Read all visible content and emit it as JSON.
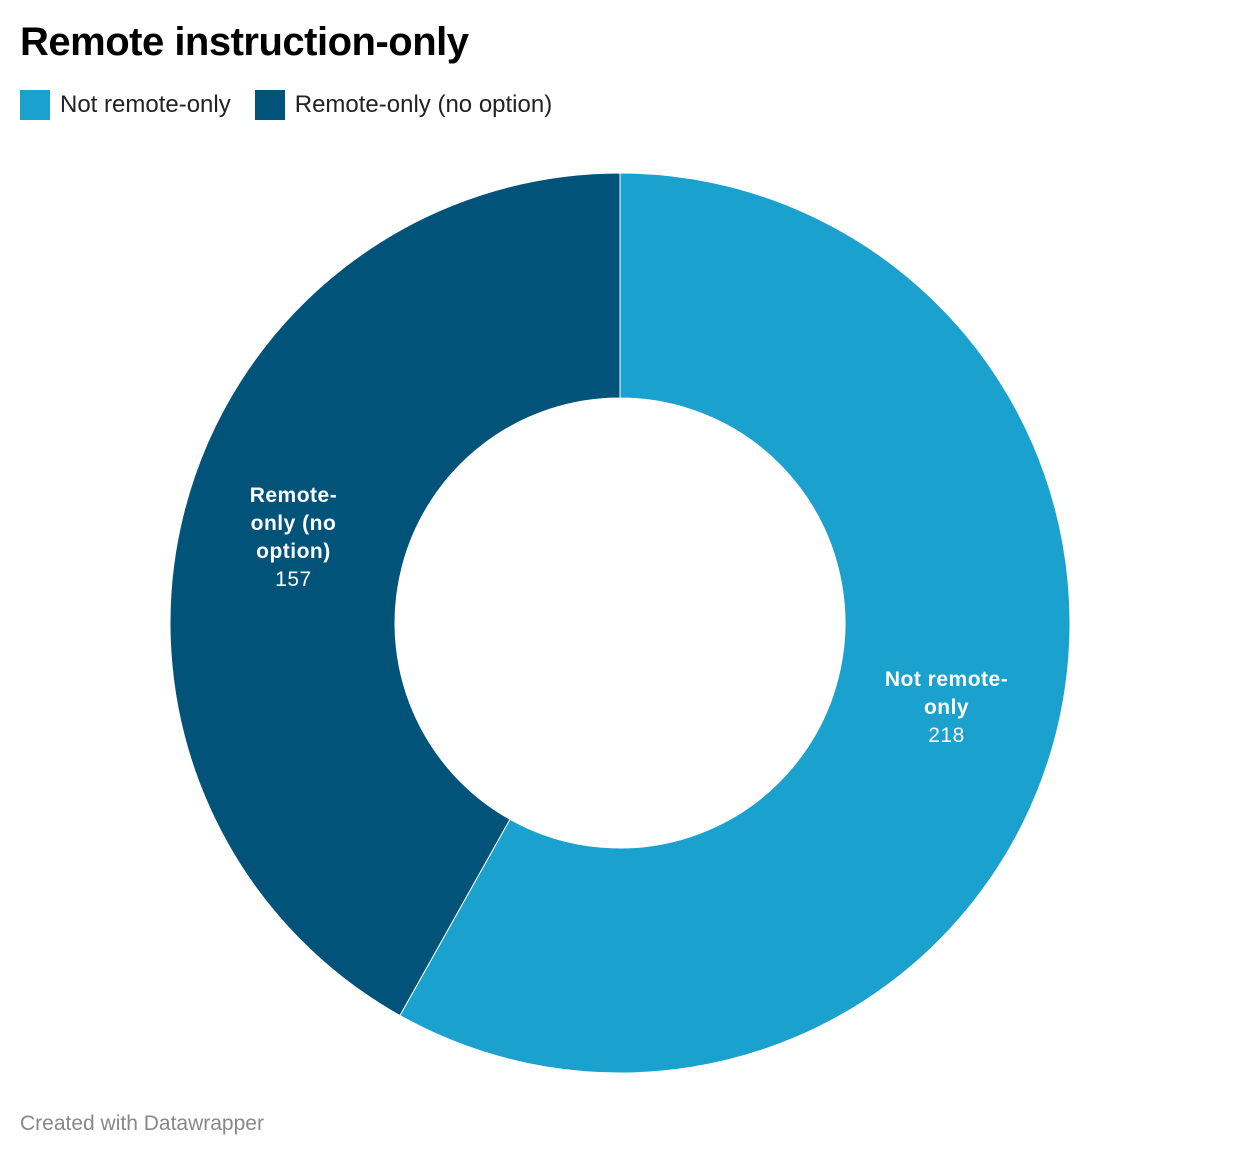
{
  "chart_data": {
    "type": "donut",
    "title": "Remote instruction-only",
    "categories": [
      "Not remote-only",
      "Remote-only (no option)"
    ],
    "values": [
      218,
      157
    ],
    "colors": [
      "#1aa1cd",
      "#01537a"
    ],
    "credit": "Created with Datawrapper"
  }
}
